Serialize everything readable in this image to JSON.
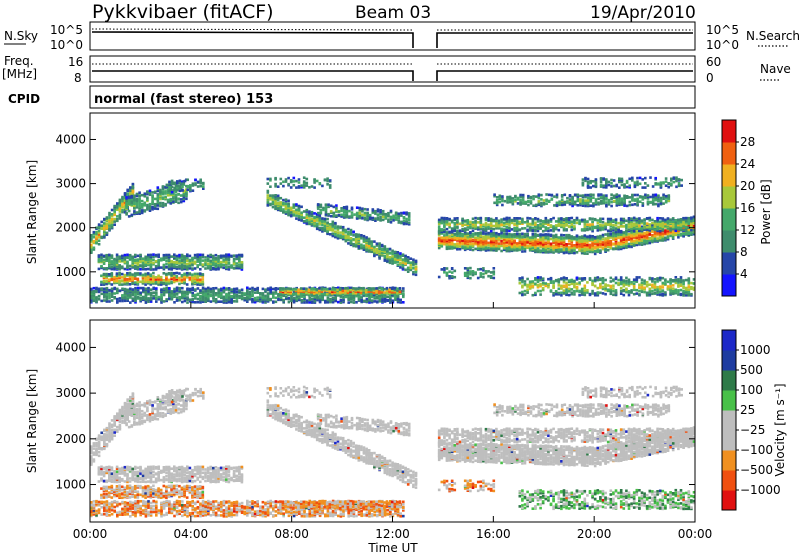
{
  "header": {
    "radar": "Pykkvibaer (fitACF)",
    "beam": "Beam 03",
    "date": "19/Apr/2010"
  },
  "noise_panel": {
    "left_label": "N.Sky",
    "right_label": "N.Search",
    "left_ticks": [
      "10^5",
      "10^0"
    ],
    "right_ticks": [
      "10^5",
      "10^0"
    ]
  },
  "freq_panel": {
    "left_label_line1": "Freq.",
    "left_label_line2": "[MHz]",
    "right_label": "Nave",
    "left_ticks": [
      "16",
      "8"
    ],
    "right_ticks": [
      "60",
      "0"
    ]
  },
  "cpid": {
    "label": "CPID",
    "mode": "normal (fast stereo) 153"
  },
  "colors": {
    "power": [
      "#1414ff",
      "#2646a8",
      "#3e8c6c",
      "#44a86a",
      "#a8c83a",
      "#f0b020",
      "#f06010",
      "#e01010"
    ],
    "velocity": [
      "#e01010",
      "#f05010",
      "#f09020",
      "#bebebe",
      "#bebebe",
      "#48c048",
      "#2e7a48",
      "#1e3ca0",
      "#1c28c8"
    ]
  },
  "chart_data": [
    {
      "type": "heatmap",
      "quantity": "power",
      "xlabel": "Time UT",
      "ylabel": "Slant Range [km]",
      "xlim": [
        0,
        24
      ],
      "ylim": [
        180,
        4600
      ],
      "x_ticks": [
        "00:00",
        "04:00",
        "08:00",
        "12:00",
        "16:00",
        "20:00",
        "00:00"
      ],
      "y_ticks": [
        1000,
        2000,
        3000,
        4000
      ],
      "data_gap_hours": [
        13.0,
        13.8
      ],
      "colorbar": {
        "label": "Power [dB]",
        "ticks": [
          4,
          8,
          12,
          16,
          20,
          24,
          28
        ],
        "range": [
          0,
          32
        ]
      }
    },
    {
      "type": "heatmap",
      "quantity": "velocity",
      "xlabel": "Time UT",
      "ylabel": "Slant Range [km]",
      "xlim": [
        0,
        24
      ],
      "ylim": [
        180,
        4600
      ],
      "x_ticks": [
        "00:00",
        "04:00",
        "08:00",
        "12:00",
        "16:00",
        "20:00",
        "00:00"
      ],
      "y_ticks": [
        1000,
        2000,
        3000,
        4000
      ],
      "data_gap_hours": [
        13.0,
        13.8
      ],
      "colorbar": {
        "label": "Velocity [m s⁻¹]",
        "ticks": [
          "1000",
          "500",
          "100",
          "25",
          "−25",
          "−100",
          "−500",
          "−1000"
        ]
      }
    }
  ]
}
